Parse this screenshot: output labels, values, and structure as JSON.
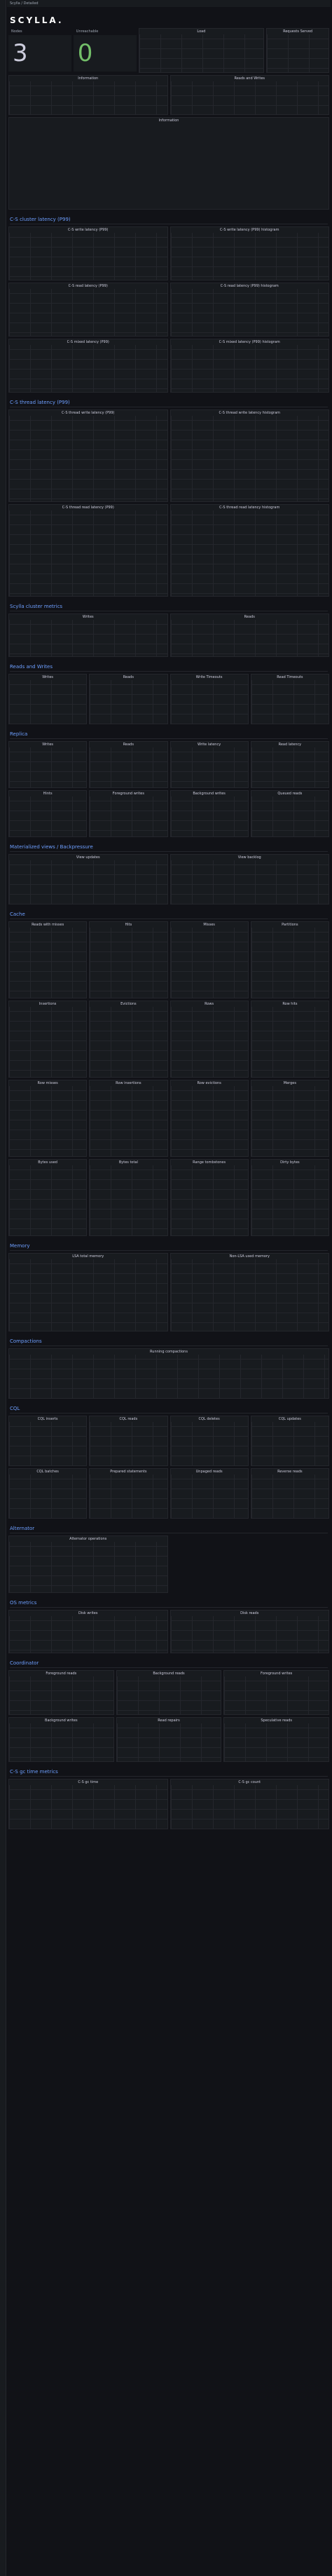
{
  "header": {
    "breadcrumb": "Scylla / Detailed",
    "logo": "SCYLLA."
  },
  "stats": [
    {
      "label": "Nodes",
      "value": 3
    },
    {
      "label": "Unreachable",
      "value": 0
    }
  ],
  "top_panels": [
    "Load",
    "Requests Served",
    "Information",
    "Reads and Writes"
  ],
  "notes_title": "Information",
  "sections": [
    {
      "title": "C-S cluster latency (P99)",
      "panels": [
        "C-S write latency (P99)",
        "C-S write latency (P99) histogram",
        "C-S read latency (P99)",
        "C-S read latency (P99) histogram",
        "C-S mixed latency (P99)",
        "C-S mixed latency (P99) histogram"
      ]
    },
    {
      "title": "C-S thread latency (P99)",
      "panels": [
        "C-S thread write latency (P99)",
        "C-S thread write latency histogram",
        "C-S thread read latency (P99)",
        "C-S thread read latency histogram"
      ]
    },
    {
      "title": "Scylla cluster metrics",
      "panels": [
        "Writes",
        "Reads"
      ]
    },
    {
      "title": "Reads and Writes",
      "panels": [
        "Writes",
        "Reads",
        "Write Timeouts",
        "Read Timeouts"
      ]
    },
    {
      "title": "Replica",
      "panels": [
        "Writes",
        "Reads",
        "Write latency",
        "Read latency",
        "Hints",
        "Foreground writes",
        "Background writes",
        "Queued reads"
      ]
    },
    {
      "title": "Materialized views / Backpressure",
      "panels": [
        "View updates",
        "View backlog"
      ]
    },
    {
      "title": "Cache",
      "panels": [
        "Reads with misses",
        "Hits",
        "Misses",
        "Partitions",
        "Insertions",
        "Evictions",
        "Rows",
        "Row hits",
        "Row misses",
        "Row insertions",
        "Row evictions",
        "Merges",
        "Bytes used",
        "Bytes total",
        "Range tombstones",
        "Dirty bytes"
      ]
    },
    {
      "title": "Memory",
      "panels": [
        "LSA total memory",
        "Non-LSA used memory"
      ]
    },
    {
      "title": "Compactions",
      "panels": [
        "Running compactions"
      ]
    },
    {
      "title": "CQL",
      "panels": [
        "CQL inserts",
        "CQL reads",
        "CQL deletes",
        "CQL updates",
        "CQL batches",
        "Prepared statements",
        "Unpaged reads",
        "Reverse reads"
      ]
    },
    {
      "title": "Alternator",
      "panels": [
        "Alternator operations"
      ]
    },
    {
      "title": "OS metrics",
      "panels": [
        "Disk writes",
        "Disk reads"
      ]
    },
    {
      "title": "Coordinator",
      "panels": [
        "Foreground reads",
        "Background reads",
        "Foreground writes",
        "Background writes",
        "Read repairs",
        "Speculative reads"
      ]
    },
    {
      "title": "C-S gc time metrics",
      "panels": [
        "C-S gc time",
        "C-S gc count"
      ]
    }
  ]
}
